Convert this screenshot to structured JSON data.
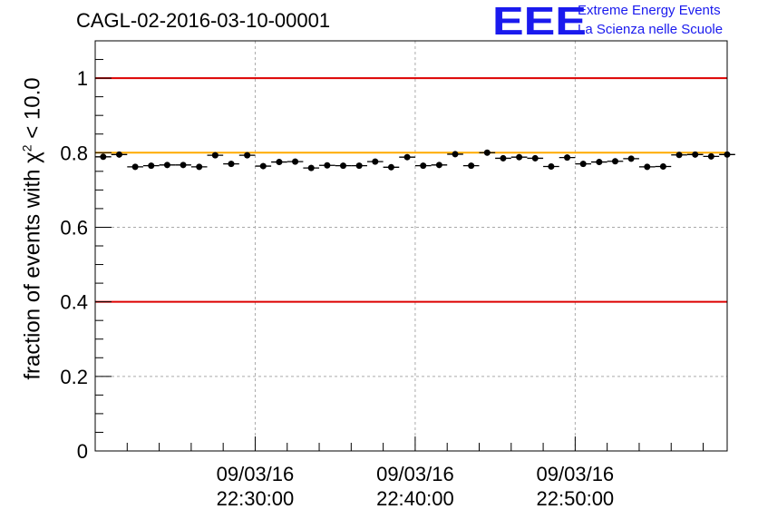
{
  "header": {
    "run_title": "CAGL-02-2016-03-10-00001"
  },
  "logo": {
    "mark": "EEE",
    "line1": "Extreme Energy Events",
    "line2": "La Scienza nelle Scuole",
    "color": "#1a1aee"
  },
  "chart_data": {
    "type": "scatter",
    "ylabel": {
      "prefix": "fraction of events with ",
      "symbol": "χ",
      "superscript": "2",
      "suffix": " < 10.0"
    },
    "ylim": [
      0,
      1.1
    ],
    "yticks": [
      "0",
      "0.2",
      "0.4",
      "0.6",
      "0.8",
      "1"
    ],
    "ytick_values": [
      0,
      0.2,
      0.4,
      0.6,
      0.8,
      1.0
    ],
    "xlim_minutes": [
      -20,
      19.5
    ],
    "xticks": [
      {
        "t": -10,
        "date": "09/03/16",
        "time": "22:30:00"
      },
      {
        "t": 0,
        "date": "09/03/16",
        "time": "22:40:00"
      },
      {
        "t": 10,
        "date": "09/03/16",
        "time": "22:50:00"
      }
    ],
    "grid": true,
    "reference_lines": [
      {
        "y": 1.0,
        "color": "#dd0000"
      },
      {
        "y": 0.4,
        "color": "#dd0000"
      },
      {
        "y": 0.8,
        "color": "#ffaa00"
      }
    ],
    "bin_width_minutes": 1,
    "bin_centers_minutes": [
      -19.5,
      -18.5,
      -17.5,
      -16.5,
      -15.5,
      -14.5,
      -13.5,
      -12.5,
      -11.5,
      -10.5,
      -9.5,
      -8.5,
      -7.5,
      -6.5,
      -5.5,
      -4.5,
      -3.5,
      -2.5,
      -1.5,
      -0.5,
      0.5,
      1.5,
      2.5,
      3.5,
      4.5,
      5.5,
      6.5,
      7.5,
      8.5,
      9.5,
      10.5,
      11.5,
      12.5,
      13.5,
      14.5,
      15.5,
      16.5,
      17.5,
      18.5,
      19.5
    ],
    "values": [
      0.789,
      0.795,
      0.762,
      0.765,
      0.767,
      0.767,
      0.762,
      0.793,
      0.77,
      0.793,
      0.764,
      0.775,
      0.776,
      0.759,
      0.766,
      0.765,
      0.765,
      0.776,
      0.761,
      0.788,
      0.765,
      0.767,
      0.796,
      0.765,
      0.8,
      0.785,
      0.788,
      0.785,
      0.763,
      0.787,
      0.77,
      0.775,
      0.777,
      0.784,
      0.762,
      0.763,
      0.794,
      0.795,
      0.79,
      0.795
    ],
    "errors": [
      0.008,
      0.008,
      0.008,
      0.008,
      0.008,
      0.008,
      0.008,
      0.008,
      0.008,
      0.008,
      0.008,
      0.008,
      0.008,
      0.008,
      0.008,
      0.008,
      0.008,
      0.008,
      0.008,
      0.008,
      0.008,
      0.008,
      0.008,
      0.008,
      0.008,
      0.008,
      0.008,
      0.008,
      0.008,
      0.008,
      0.008,
      0.008,
      0.008,
      0.008,
      0.008,
      0.008,
      0.008,
      0.008,
      0.008,
      0.008
    ],
    "marker_color": "#000000"
  }
}
